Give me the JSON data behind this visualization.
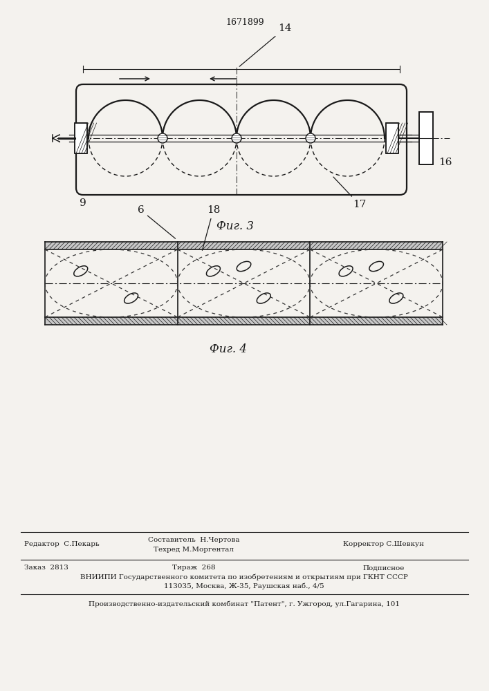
{
  "title": "1671899",
  "fig3_label": "Фиг. 3",
  "fig4_label": "Фиг. 4",
  "bg_color": "#f4f2ee",
  "line_color": "#1a1a1a",
  "dash_color": "#333333",
  "footer_line1_left": "Редактор  С.Пекарь",
  "footer_line1_mid1": "Составитель  Н.Чертова",
  "footer_line1_mid2": "Техред М.Моргентал",
  "footer_line1_right": "Корректор С.Шевкун",
  "footer_line2_left": "Заказ  2813",
  "footer_line2_mid": "Тираж  268",
  "footer_line2_right": "Подписное",
  "footer_line3": "ВНИИПИ Государственного комитета по изобретениям и открытиям при ГКНТ СССР",
  "footer_line4": "113035, Москва, Ж-35, Раушская наб., 4/5",
  "footer_line5": "Производственно-издательский комбинат \"Патент\", г. Ужгород, ул.Гагарина, 101"
}
